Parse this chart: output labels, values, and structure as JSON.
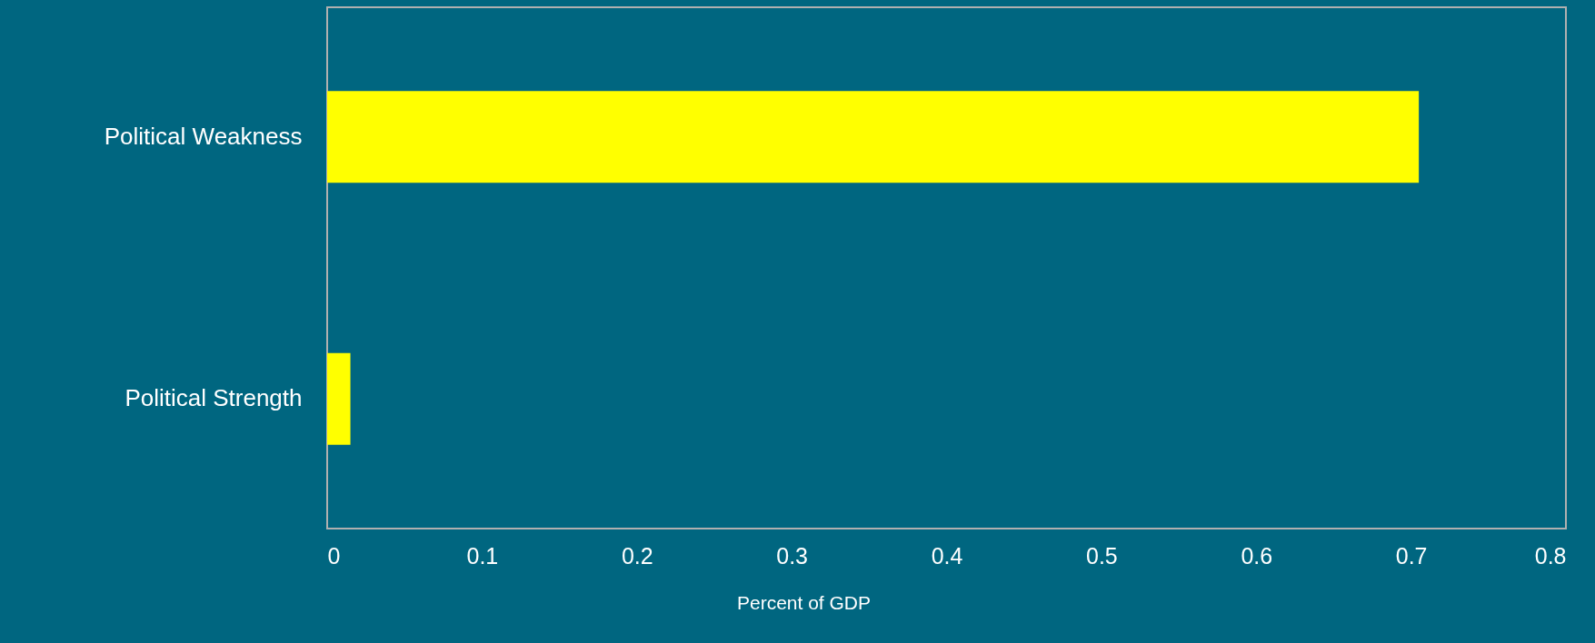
{
  "chart_data": {
    "type": "bar",
    "orientation": "horizontal",
    "categories": [
      "Political Weakness",
      "Political Strength"
    ],
    "values": [
      0.705,
      0.015
    ],
    "color": "#ffff00",
    "xlabel": "Percent of GDP",
    "xlim": [
      0,
      0.8
    ],
    "xticks": [
      0,
      0.1,
      0.2,
      0.3,
      0.4,
      0.5,
      0.6,
      0.7,
      0.8
    ],
    "grid": false
  }
}
